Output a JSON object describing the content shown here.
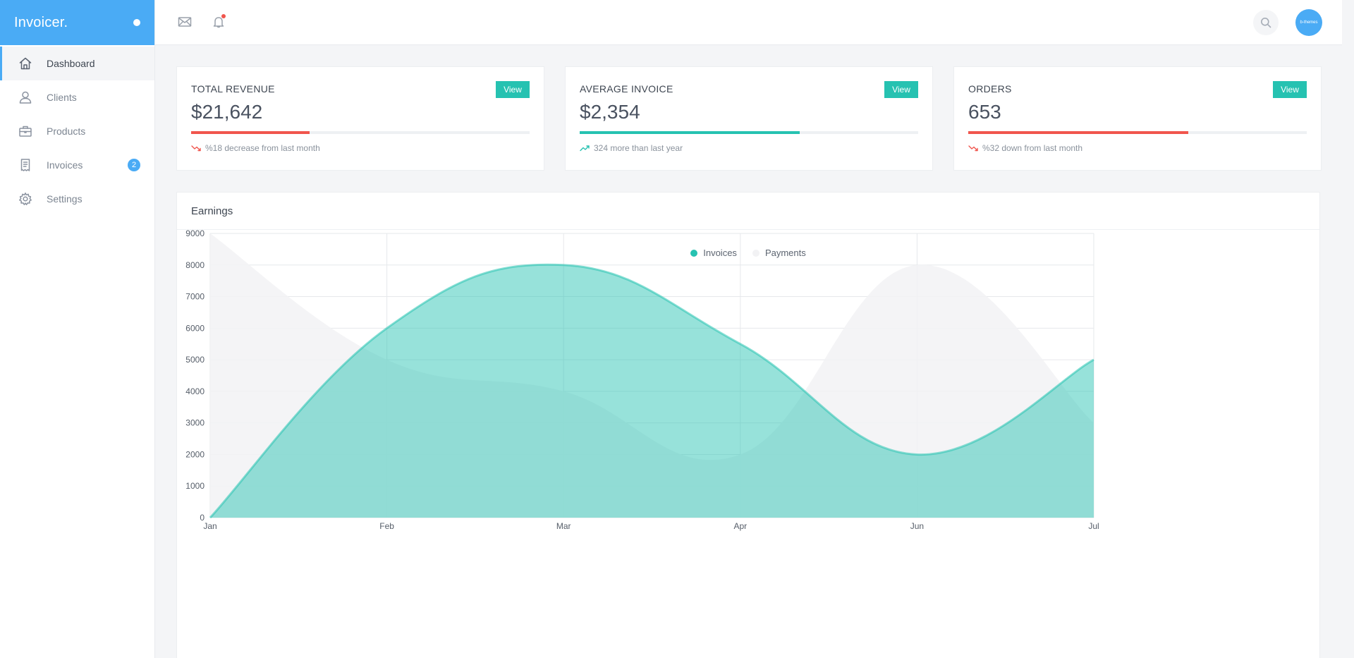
{
  "app": {
    "brand": "Invoicer."
  },
  "sidebar": {
    "items": [
      {
        "label": "Dashboard",
        "icon": "home-icon",
        "active": true
      },
      {
        "label": "Clients",
        "icon": "user-icon"
      },
      {
        "label": "Products",
        "icon": "briefcase-icon"
      },
      {
        "label": "Invoices",
        "icon": "receipt-icon",
        "badge": "2"
      },
      {
        "label": "Settings",
        "icon": "gear-icon"
      }
    ]
  },
  "topbar": {
    "avatar_text": "b-themes"
  },
  "stats": [
    {
      "title": "TOTAL REVENUE",
      "value": "$21,642",
      "button": "View",
      "note": "%18 decrease from last month",
      "trend": "down",
      "progress": 0.35,
      "color": "#f0554d"
    },
    {
      "title": "AVERAGE INVOICE",
      "value": "$2,354",
      "button": "View",
      "note": "324 more than last year",
      "trend": "up",
      "progress": 0.65,
      "color": "#26c2b1"
    },
    {
      "title": "ORDERS",
      "value": "653",
      "button": "View",
      "note": "%32 down from last month",
      "trend": "down",
      "progress": 0.65,
      "color": "#f0554d"
    }
  ],
  "earnings": {
    "title": "Earnings",
    "chart_data": {
      "type": "area",
      "title": "",
      "categories": [
        "Jan",
        "Feb",
        "Mar",
        "Apr",
        "Jun",
        "Jul"
      ],
      "ylim": [
        0,
        9000
      ],
      "yticks": [
        0,
        1000,
        2000,
        3000,
        4000,
        5000,
        6000,
        7000,
        8000,
        9000
      ],
      "grid": true,
      "legend": "top-center",
      "series": [
        {
          "name": "Invoices",
          "color": "#26c2b1",
          "values": [
            0,
            6000,
            8000,
            5500,
            2000,
            5000
          ]
        },
        {
          "name": "Payments",
          "color": "#f2f2f4",
          "values": [
            9000,
            5000,
            4000,
            2000,
            8000,
            3000
          ]
        }
      ]
    }
  }
}
